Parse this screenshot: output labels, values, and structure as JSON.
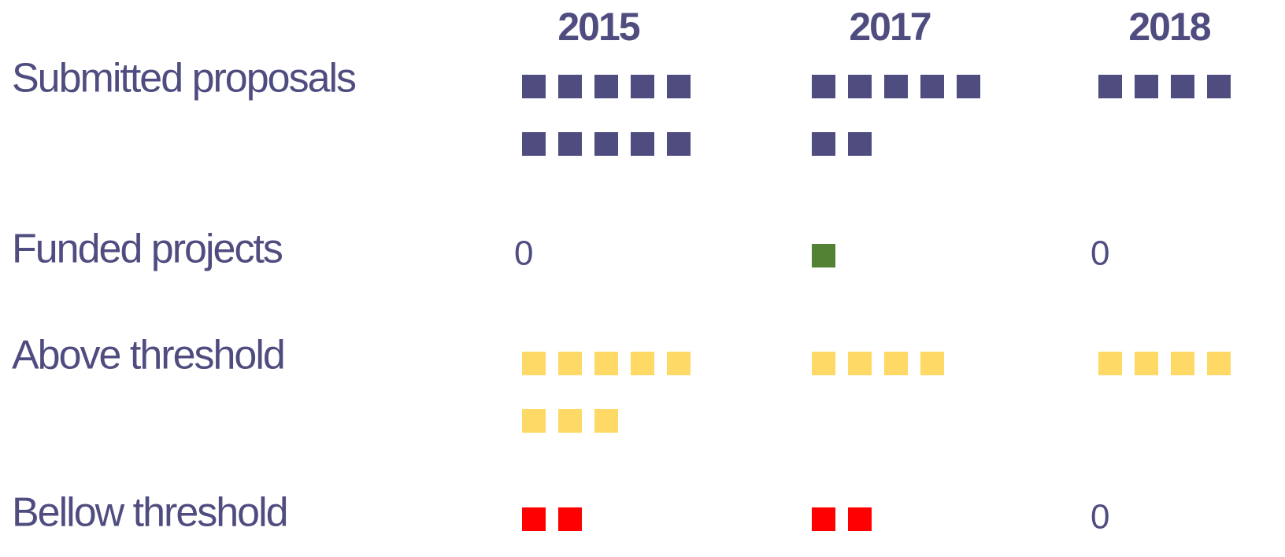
{
  "chart_data": {
    "type": "pictograph",
    "categories": [
      "2015",
      "2017",
      "2018"
    ],
    "series": [
      {
        "name": "Submitted proposals",
        "color": "#4f4d80",
        "values": [
          10,
          7,
          4
        ]
      },
      {
        "name": "Funded projects",
        "color": "#548235",
        "values": [
          0,
          1,
          0
        ]
      },
      {
        "name": "Above threshold",
        "color": "#ffd966",
        "values": [
          8,
          4,
          4
        ]
      },
      {
        "name": "Bellow threshold",
        "color": "#ff0000",
        "values": [
          2,
          2,
          0
        ]
      }
    ]
  }
}
